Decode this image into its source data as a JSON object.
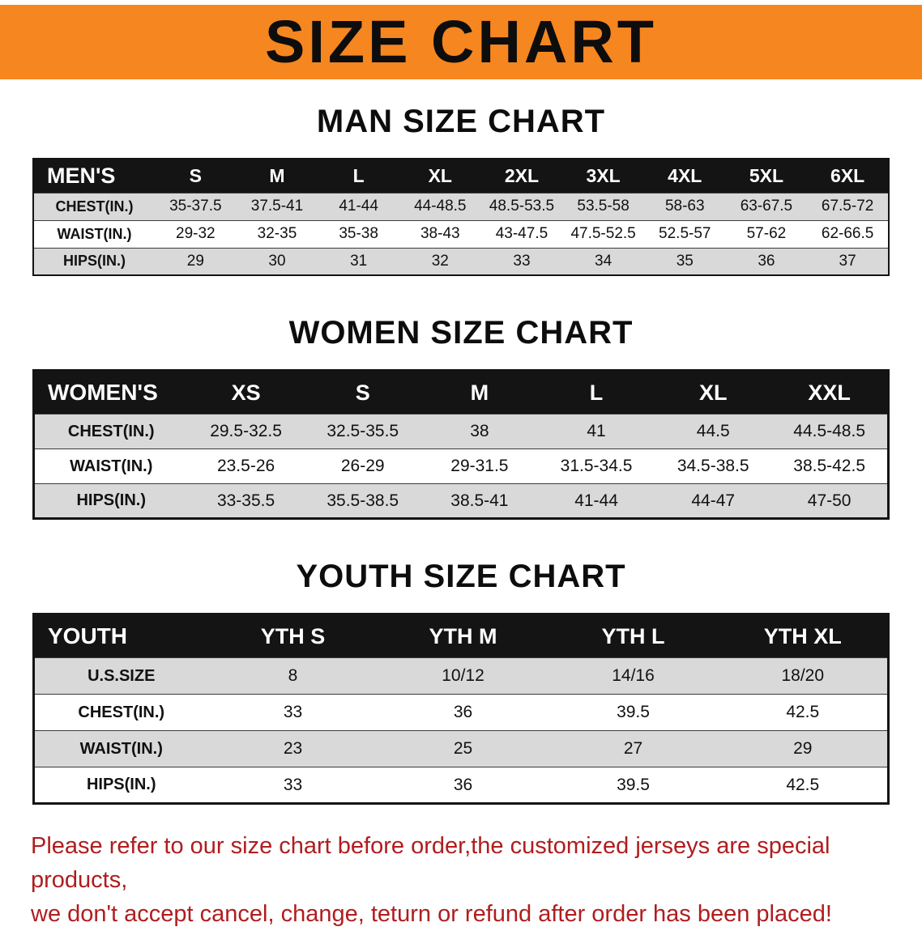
{
  "banner": {
    "title": "SIZE CHART",
    "background_color": "#f6861f",
    "text_color": "#0d0d0d"
  },
  "sections": [
    {
      "heading": "MAN SIZE CHART",
      "table": {
        "label": "MEN'S",
        "columns": [
          "S",
          "M",
          "L",
          "XL",
          "2XL",
          "3XL",
          "4XL",
          "5XL",
          "6XL"
        ],
        "rows": [
          {
            "label": "CHEST(IN.)",
            "values": [
              "35-37.5",
              "37.5-41",
              "41-44",
              "44-48.5",
              "48.5-53.5",
              "53.5-58",
              "58-63",
              "63-67.5",
              "67.5-72"
            ]
          },
          {
            "label": "WAIST(IN.)",
            "values": [
              "29-32",
              "32-35",
              "35-38",
              "38-43",
              "43-47.5",
              "47.5-52.5",
              "52.5-57",
              "57-62",
              "62-66.5"
            ]
          },
          {
            "label": "HIPS(IN.)",
            "values": [
              "29",
              "30",
              "31",
              "32",
              "33",
              "34",
              "35",
              "36",
              "37"
            ]
          }
        ]
      }
    },
    {
      "heading": "WOMEN SIZE CHART",
      "table": {
        "label": "WOMEN'S",
        "columns": [
          "XS",
          "S",
          "M",
          "L",
          "XL",
          "XXL"
        ],
        "rows": [
          {
            "label": "CHEST(IN.)",
            "values": [
              "29.5-32.5",
              "32.5-35.5",
              "38",
              "41",
              "44.5",
              "44.5-48.5"
            ]
          },
          {
            "label": "WAIST(IN.)",
            "values": [
              "23.5-26",
              "26-29",
              "29-31.5",
              "31.5-34.5",
              "34.5-38.5",
              "38.5-42.5"
            ]
          },
          {
            "label": "HIPS(IN.)",
            "values": [
              "33-35.5",
              "35.5-38.5",
              "38.5-41",
              "41-44",
              "44-47",
              "47-50"
            ]
          }
        ]
      }
    },
    {
      "heading": "YOUTH SIZE CHART",
      "table": {
        "label": "YOUTH",
        "columns": [
          "YTH S",
          "YTH M",
          "YTH L",
          "YTH XL"
        ],
        "rows": [
          {
            "label": "U.S.SIZE",
            "values": [
              "8",
              "10/12",
              "14/16",
              "18/20"
            ]
          },
          {
            "label": "CHEST(IN.)",
            "values": [
              "33",
              "36",
              "39.5",
              "42.5"
            ]
          },
          {
            "label": "WAIST(IN.)",
            "values": [
              "23",
              "25",
              "27",
              "29"
            ]
          },
          {
            "label": "HIPS(IN.)",
            "values": [
              "33",
              "36",
              "39.5",
              "42.5"
            ]
          }
        ]
      }
    }
  ],
  "footer": {
    "line1": "Please refer to our size chart before order,the customized jerseys are special products,",
    "line2": "we don't accept cancel, change, teturn or refund after order has been placed!",
    "text_color": "#b01d1f"
  }
}
